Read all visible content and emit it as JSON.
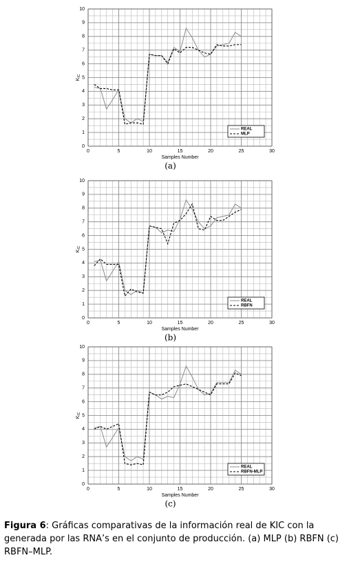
{
  "chart_data": [
    {
      "type": "line",
      "label": "(a)",
      "xlabel": "Samples  Number",
      "ylabel": "K",
      "ylabel_sub": "IC",
      "x": [
        1,
        2,
        3,
        4,
        5,
        6,
        7,
        8,
        9,
        10,
        11,
        12,
        13,
        14,
        15,
        16,
        17,
        18,
        19,
        20,
        21,
        22,
        23,
        24,
        25
      ],
      "series": [
        {
          "name": "REAL",
          "color": "#8c8c8c",
          "style": "solid",
          "values": [
            4.3,
            4.2,
            2.7,
            3.4,
            4.1,
            2.0,
            1.7,
            2.0,
            1.8,
            6.7,
            6.6,
            6.6,
            6.1,
            7.2,
            6.9,
            8.6,
            7.9,
            7.0,
            6.5,
            6.7,
            7.3,
            7.4,
            7.5,
            8.3,
            8.0
          ]
        },
        {
          "name": "MLP",
          "color": "#000000",
          "style": "dashed",
          "values": [
            4.5,
            4.2,
            4.2,
            4.1,
            4.1,
            1.6,
            1.7,
            1.7,
            1.6,
            6.7,
            6.6,
            6.6,
            6.0,
            7.1,
            6.8,
            7.2,
            7.2,
            7.0,
            6.8,
            6.7,
            7.4,
            7.3,
            7.3,
            7.4,
            7.4
          ]
        }
      ],
      "xlim": [
        0,
        30
      ],
      "xticks": [
        0,
        5,
        10,
        15,
        20,
        25,
        30
      ],
      "ylim": [
        0,
        10
      ],
      "yticks": [
        0,
        1,
        2,
        3,
        4,
        5,
        6,
        7,
        8,
        9,
        10
      ],
      "grid": true,
      "minor_grid": true,
      "legend": "lower-right"
    },
    {
      "type": "line",
      "label": "(b)",
      "xlabel": "Samples  Number",
      "ylabel": "K",
      "ylabel_sub": "IC",
      "x": [
        1,
        2,
        3,
        4,
        5,
        6,
        7,
        8,
        9,
        10,
        11,
        12,
        13,
        14,
        15,
        16,
        17,
        18,
        19,
        20,
        21,
        22,
        23,
        24,
        25
      ],
      "series": [
        {
          "name": "REAL",
          "color": "#8c8c8c",
          "style": "solid",
          "values": [
            4.1,
            4.2,
            2.7,
            3.4,
            4.1,
            2.0,
            1.7,
            2.0,
            1.8,
            6.7,
            6.6,
            6.2,
            6.4,
            6.3,
            7.2,
            8.6,
            7.9,
            7.0,
            6.5,
            6.7,
            7.3,
            7.4,
            7.5,
            8.3,
            8.0
          ]
        },
        {
          "name": "RBFN",
          "color": "#000000",
          "style": "dashed",
          "values": [
            3.8,
            4.3,
            3.9,
            3.9,
            3.9,
            1.6,
            2.1,
            1.9,
            1.8,
            6.7,
            6.6,
            6.5,
            5.4,
            6.9,
            7.1,
            7.6,
            8.3,
            6.5,
            6.4,
            7.4,
            7.1,
            7.1,
            7.4,
            7.7,
            7.9
          ]
        }
      ],
      "xlim": [
        0,
        30
      ],
      "xticks": [
        0,
        5,
        10,
        15,
        20,
        25,
        30
      ],
      "ylim": [
        0,
        10
      ],
      "yticks": [
        0,
        1,
        2,
        3,
        4,
        5,
        6,
        7,
        8,
        9,
        10
      ],
      "grid": true,
      "minor_grid": true,
      "legend": "lower-right"
    },
    {
      "type": "line",
      "label": "(c)",
      "xlabel": "Samples  Number",
      "ylabel": "K",
      "ylabel_sub": "IC",
      "x": [
        1,
        2,
        3,
        4,
        5,
        6,
        7,
        8,
        9,
        10,
        11,
        12,
        13,
        14,
        15,
        16,
        17,
        18,
        19,
        20,
        21,
        22,
        23,
        24,
        25
      ],
      "series": [
        {
          "name": "REAL",
          "color": "#8c8c8c",
          "style": "solid",
          "values": [
            4.1,
            4.2,
            2.7,
            3.4,
            4.1,
            2.0,
            1.7,
            2.0,
            1.8,
            6.7,
            6.5,
            6.2,
            6.4,
            6.3,
            7.3,
            8.6,
            7.8,
            6.9,
            6.5,
            6.6,
            7.4,
            7.4,
            7.4,
            8.3,
            8.0
          ]
        },
        {
          "name": "RBFN-MLP",
          "color": "#000000",
          "style": "dashed",
          "values": [
            4.0,
            4.2,
            4.0,
            4.2,
            4.4,
            1.5,
            1.4,
            1.5,
            1.4,
            6.7,
            6.5,
            6.5,
            6.7,
            7.1,
            7.2,
            7.3,
            7.1,
            6.9,
            6.7,
            6.5,
            7.3,
            7.3,
            7.3,
            8.1,
            7.9
          ]
        }
      ],
      "xlim": [
        0,
        30
      ],
      "xticks": [
        0,
        5,
        10,
        15,
        20,
        25,
        30
      ],
      "ylim": [
        0,
        10
      ],
      "yticks": [
        0,
        1,
        2,
        3,
        4,
        5,
        6,
        7,
        8,
        9,
        10
      ],
      "grid": true,
      "minor_grid": true,
      "legend": "lower-right"
    }
  ],
  "caption": {
    "label": "Figura 6",
    "text": ": Gráficas comparativas de la información real de KIC con la generada por las RNA’s  en el conjunto de producción. (a) MLP (b) RBFN (c) RBFN–MLP."
  }
}
